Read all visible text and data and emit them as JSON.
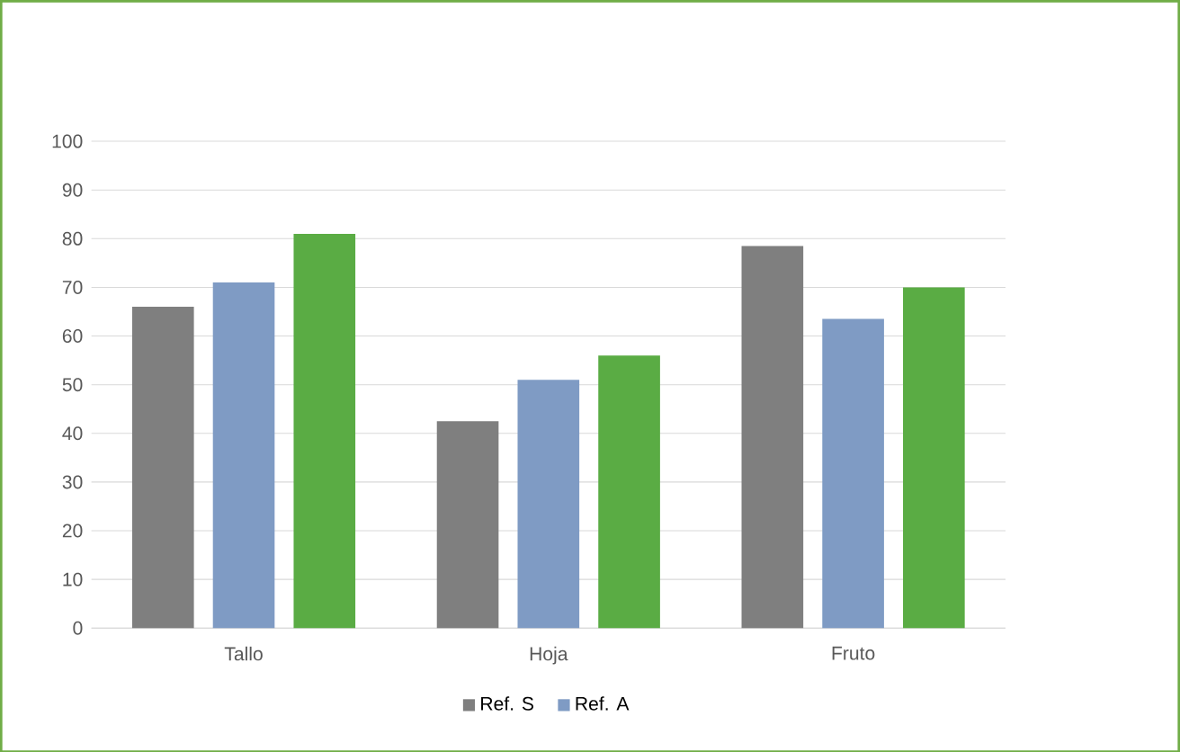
{
  "chart_data": {
    "type": "bar",
    "categories": [
      "Tallo",
      "Hoja",
      "Fruto"
    ],
    "series": [
      {
        "name": "Ref. S",
        "color": "#7f7f7f",
        "values": [
          66,
          42.5,
          78.5
        ]
      },
      {
        "name": "Ref. A",
        "color": "#7f9bc4",
        "values": [
          71,
          51,
          63.5
        ]
      },
      {
        "color": "#5aac44",
        "values": [
          81,
          56,
          70
        ]
      }
    ],
    "ylim": [
      0,
      100
    ],
    "yticks": [
      0,
      10,
      20,
      30,
      40,
      50,
      60,
      70,
      80,
      90,
      100
    ],
    "grid": "y",
    "legend": "bottom"
  }
}
